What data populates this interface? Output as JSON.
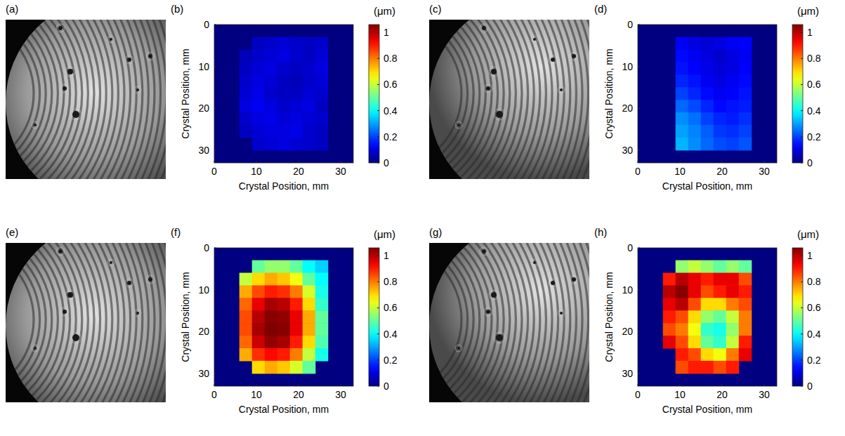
{
  "images": [
    {
      "label": "(a)"
    },
    {
      "label": "(c)"
    },
    {
      "label": "(e)"
    },
    {
      "label": "(g)"
    }
  ],
  "chart_data": [
    {
      "type": "heatmap",
      "panel_label": "(b)",
      "x_label": "Crystal Position, mm",
      "y_label": "Crystal Position, mm",
      "xlim": [
        0,
        33
      ],
      "ylim": [
        33,
        0
      ],
      "xticks": [
        0,
        10,
        20,
        30
      ],
      "yticks": [
        0,
        10,
        20,
        30
      ],
      "x": [
        1.5,
        4.5,
        7.5,
        10.5,
        13.5,
        16.5,
        19.5,
        22.5,
        25.5,
        28.5,
        31.5
      ],
      "y": [
        1.5,
        4.5,
        7.5,
        10.5,
        13.5,
        16.5,
        19.5,
        22.5,
        25.5,
        28.5,
        31.5
      ],
      "cells": [
        [
          null,
          null,
          null,
          null,
          null,
          null,
          null,
          null,
          null,
          null,
          null
        ],
        [
          null,
          null,
          null,
          0.07,
          0.08,
          0.09,
          0.08,
          0.07,
          0.08,
          null,
          null
        ],
        [
          null,
          null,
          0.06,
          0.08,
          0.09,
          0.1,
          0.08,
          0.07,
          0.09,
          null,
          null
        ],
        [
          null,
          null,
          0.07,
          0.09,
          0.1,
          0.08,
          0.07,
          0.08,
          0.1,
          null,
          null
        ],
        [
          null,
          null,
          0.08,
          0.1,
          0.09,
          0.07,
          0.06,
          0.08,
          0.09,
          null,
          null
        ],
        [
          null,
          null,
          0.09,
          0.11,
          0.08,
          0.07,
          0.07,
          0.09,
          0.08,
          null,
          null
        ],
        [
          null,
          null,
          0.1,
          0.12,
          0.1,
          0.08,
          0.09,
          0.1,
          0.07,
          null,
          null
        ],
        [
          null,
          null,
          0.08,
          0.1,
          0.11,
          0.09,
          0.1,
          0.09,
          0.08,
          null,
          null
        ],
        [
          null,
          null,
          0.07,
          0.09,
          0.1,
          0.1,
          0.11,
          0.08,
          0.07,
          null,
          null
        ],
        [
          null,
          null,
          null,
          0.08,
          0.09,
          0.1,
          0.09,
          0.08,
          0.07,
          null,
          null
        ],
        [
          null,
          null,
          null,
          null,
          null,
          null,
          null,
          null,
          null,
          null,
          null
        ]
      ],
      "colorbar": {
        "title": "(μm)",
        "range": [
          0,
          1.06
        ],
        "ticks": [
          0,
          0.2,
          0.4,
          0.6,
          0.8,
          1
        ]
      }
    },
    {
      "type": "heatmap",
      "panel_label": "(d)",
      "x_label": "Crystal Position, mm",
      "y_label": "Crystal Position, mm",
      "xlim": [
        0,
        33
      ],
      "ylim": [
        33,
        0
      ],
      "xticks": [
        0,
        10,
        20,
        30
      ],
      "yticks": [
        0,
        10,
        20,
        30
      ],
      "x": [
        1.5,
        4.5,
        7.5,
        10.5,
        13.5,
        16.5,
        19.5,
        22.5,
        25.5,
        28.5,
        31.5
      ],
      "y": [
        1.5,
        4.5,
        7.5,
        10.5,
        13.5,
        16.5,
        19.5,
        22.5,
        25.5,
        28.5,
        31.5
      ],
      "cells": [
        [
          null,
          null,
          null,
          null,
          null,
          null,
          null,
          null,
          null,
          null,
          null
        ],
        [
          null,
          null,
          null,
          0.12,
          0.1,
          0.09,
          0.1,
          0.12,
          0.13,
          null,
          null
        ],
        [
          null,
          null,
          null,
          0.14,
          0.12,
          0.1,
          0.08,
          0.1,
          0.12,
          null,
          null
        ],
        [
          null,
          null,
          null,
          0.15,
          0.13,
          0.11,
          0.09,
          0.1,
          0.13,
          null,
          null
        ],
        [
          null,
          null,
          null,
          0.17,
          0.15,
          0.12,
          0.1,
          0.12,
          0.14,
          null,
          null
        ],
        [
          null,
          null,
          null,
          0.2,
          0.17,
          0.14,
          0.12,
          0.13,
          0.15,
          null,
          null
        ],
        [
          null,
          null,
          null,
          0.24,
          0.21,
          0.17,
          0.14,
          0.15,
          0.16,
          null,
          null
        ],
        [
          null,
          null,
          null,
          0.28,
          0.25,
          0.2,
          0.17,
          0.16,
          0.18,
          null,
          null
        ],
        [
          null,
          null,
          null,
          0.3,
          0.27,
          0.23,
          0.19,
          0.18,
          0.2,
          null,
          null
        ],
        [
          null,
          null,
          null,
          0.32,
          0.28,
          0.24,
          0.21,
          0.2,
          0.22,
          null,
          null
        ],
        [
          null,
          null,
          null,
          null,
          null,
          null,
          null,
          null,
          null,
          null,
          null
        ]
      ],
      "colorbar": {
        "title": "(μm)",
        "range": [
          0,
          1.06
        ],
        "ticks": [
          0,
          0.2,
          0.4,
          0.6,
          0.8,
          1
        ]
      }
    },
    {
      "type": "heatmap",
      "panel_label": "(f)",
      "x_label": "Crystal Position, mm",
      "y_label": "Crystal Position, mm",
      "xlim": [
        0,
        33
      ],
      "ylim": [
        33,
        0
      ],
      "xticks": [
        0,
        10,
        20,
        30
      ],
      "yticks": [
        0,
        10,
        20,
        30
      ],
      "x": [
        1.5,
        4.5,
        7.5,
        10.5,
        13.5,
        16.5,
        19.5,
        22.5,
        25.5,
        28.5,
        31.5
      ],
      "y": [
        1.5,
        4.5,
        7.5,
        10.5,
        13.5,
        16.5,
        19.5,
        22.5,
        25.5,
        28.5,
        31.5
      ],
      "cells": [
        [
          null,
          null,
          null,
          null,
          null,
          null,
          null,
          null,
          null,
          null,
          null
        ],
        [
          null,
          null,
          null,
          0.5,
          0.55,
          0.55,
          0.5,
          0.4,
          0.35,
          null,
          null
        ],
        [
          null,
          null,
          0.6,
          0.7,
          0.75,
          0.72,
          0.65,
          0.5,
          0.4,
          null,
          null
        ],
        [
          null,
          null,
          0.75,
          0.85,
          0.9,
          0.88,
          0.8,
          0.62,
          0.42,
          null,
          null
        ],
        [
          null,
          null,
          0.82,
          0.95,
          1.02,
          1.0,
          0.9,
          0.7,
          0.45,
          null,
          null
        ],
        [
          null,
          null,
          0.85,
          1.0,
          1.05,
          1.04,
          0.95,
          0.75,
          0.5,
          null,
          null
        ],
        [
          null,
          null,
          0.85,
          1.02,
          1.06,
          1.05,
          0.95,
          0.75,
          0.5,
          null,
          null
        ],
        [
          null,
          null,
          0.82,
          0.98,
          1.04,
          1.02,
          0.9,
          0.7,
          0.48,
          null,
          null
        ],
        [
          null,
          null,
          0.75,
          0.88,
          0.92,
          0.9,
          0.8,
          0.6,
          0.42,
          null,
          null
        ],
        [
          null,
          null,
          null,
          0.7,
          0.75,
          0.72,
          0.62,
          0.5,
          null,
          null,
          null
        ],
        [
          null,
          null,
          null,
          null,
          null,
          null,
          null,
          null,
          null,
          null,
          null
        ]
      ],
      "colorbar": {
        "title": "(μm)",
        "range": [
          0,
          1.06
        ],
        "ticks": [
          0,
          0.2,
          0.4,
          0.6,
          0.8,
          1
        ]
      }
    },
    {
      "type": "heatmap",
      "panel_label": "(h)",
      "x_label": "Crystal Position, mm",
      "y_label": "Crystal Position, mm",
      "xlim": [
        0,
        33
      ],
      "ylim": [
        33,
        0
      ],
      "xticks": [
        0,
        10,
        20,
        30
      ],
      "yticks": [
        0,
        10,
        20,
        30
      ],
      "x": [
        1.5,
        4.5,
        7.5,
        10.5,
        13.5,
        16.5,
        19.5,
        22.5,
        25.5,
        28.5,
        31.5
      ],
      "y": [
        1.5,
        4.5,
        7.5,
        10.5,
        13.5,
        16.5,
        19.5,
        22.5,
        25.5,
        28.5,
        31.5
      ],
      "cells": [
        [
          null,
          null,
          null,
          null,
          null,
          null,
          null,
          null,
          null,
          null,
          null
        ],
        [
          null,
          null,
          null,
          0.55,
          0.6,
          0.55,
          0.5,
          0.55,
          0.5,
          null,
          null
        ],
        [
          null,
          null,
          0.9,
          1.0,
          0.95,
          0.9,
          0.95,
          0.95,
          0.85,
          null,
          null
        ],
        [
          null,
          null,
          1.0,
          1.05,
          0.95,
          0.85,
          0.9,
          0.95,
          0.9,
          null,
          null
        ],
        [
          null,
          null,
          0.95,
          1.0,
          0.85,
          0.7,
          0.7,
          0.8,
          0.85,
          null,
          null
        ],
        [
          null,
          null,
          0.9,
          0.85,
          0.7,
          0.55,
          0.5,
          0.6,
          0.8,
          null,
          null
        ],
        [
          null,
          null,
          0.85,
          0.8,
          0.65,
          0.45,
          0.42,
          0.55,
          0.8,
          null,
          null
        ],
        [
          null,
          null,
          0.95,
          0.85,
          0.7,
          0.5,
          0.45,
          0.6,
          0.9,
          null,
          null
        ],
        [
          null,
          null,
          null,
          0.9,
          0.85,
          0.7,
          0.65,
          0.8,
          0.95,
          null,
          null
        ],
        [
          null,
          null,
          null,
          0.85,
          0.9,
          0.9,
          0.85,
          0.9,
          null,
          null,
          null
        ],
        [
          null,
          null,
          null,
          null,
          null,
          null,
          null,
          null,
          null,
          null,
          null
        ]
      ],
      "colorbar": {
        "title": "(μm)",
        "range": [
          0,
          1.06
        ],
        "ticks": [
          0,
          0.2,
          0.4,
          0.6,
          0.8,
          1
        ]
      }
    }
  ]
}
